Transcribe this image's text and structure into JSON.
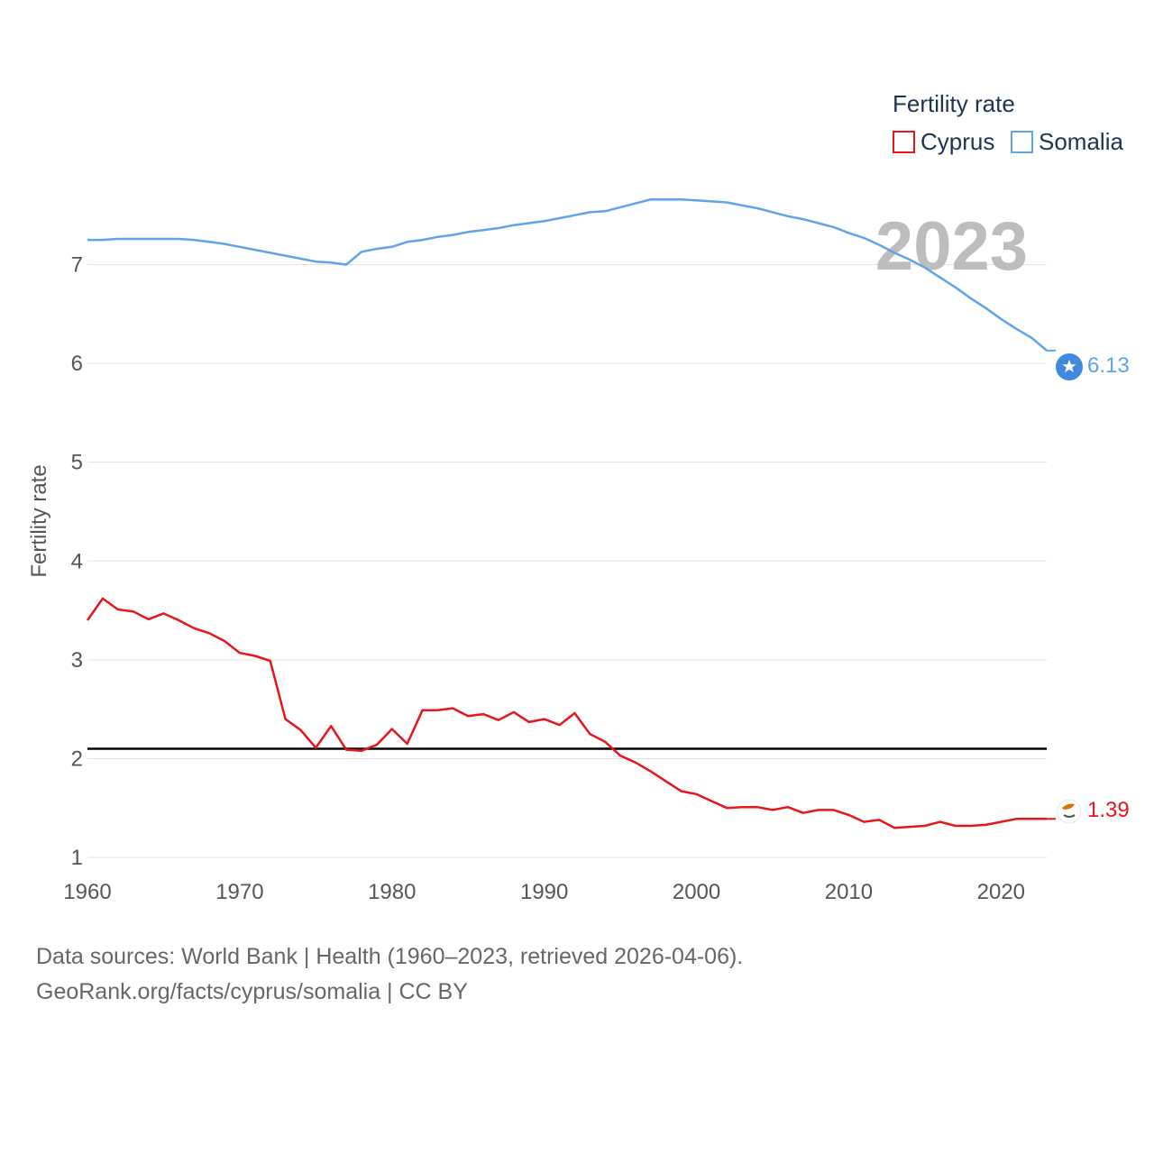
{
  "chart_data": {
    "type": "line",
    "title": "Fertility rate",
    "ylabel": "Fertility rate",
    "xlabel": "",
    "xlim": [
      1960,
      2023
    ],
    "ylim": [
      0.9,
      8.2
    ],
    "x_ticks": [
      1960,
      1970,
      1980,
      1990,
      2000,
      2010,
      2020
    ],
    "y_ticks": [
      1,
      2,
      3,
      4,
      5,
      6,
      7
    ],
    "reference_line": 2.1,
    "year_watermark": "2023",
    "legend_placement": "top-right",
    "x": [
      1960,
      1961,
      1962,
      1963,
      1964,
      1965,
      1966,
      1967,
      1968,
      1969,
      1970,
      1971,
      1972,
      1973,
      1974,
      1975,
      1976,
      1977,
      1978,
      1979,
      1980,
      1981,
      1982,
      1983,
      1984,
      1985,
      1986,
      1987,
      1988,
      1989,
      1990,
      1991,
      1992,
      1993,
      1994,
      1995,
      1996,
      1997,
      1998,
      1999,
      2000,
      2001,
      2002,
      2003,
      2004,
      2005,
      2006,
      2007,
      2008,
      2009,
      2010,
      2011,
      2012,
      2013,
      2014,
      2015,
      2016,
      2017,
      2018,
      2019,
      2020,
      2021,
      2022,
      2023
    ],
    "series": [
      {
        "name": "Cyprus",
        "color": "#e8151b",
        "icon": "cyprus-flag-icon",
        "end_label": "1.39",
        "values": [
          3.4,
          3.62,
          3.51,
          3.49,
          3.41,
          3.47,
          3.4,
          3.32,
          3.27,
          3.19,
          3.07,
          3.04,
          2.99,
          2.4,
          2.29,
          2.11,
          2.33,
          2.09,
          2.08,
          2.14,
          2.3,
          2.15,
          2.49,
          2.49,
          2.51,
          2.43,
          2.45,
          2.39,
          2.47,
          2.37,
          2.4,
          2.34,
          2.46,
          2.25,
          2.17,
          2.03,
          1.96,
          1.87,
          1.77,
          1.67,
          1.64,
          1.57,
          1.5,
          1.51,
          1.51,
          1.48,
          1.51,
          1.45,
          1.48,
          1.48,
          1.43,
          1.36,
          1.38,
          1.3,
          1.31,
          1.32,
          1.36,
          1.32,
          1.32,
          1.33,
          1.36,
          1.39,
          1.39,
          1.39
        ]
      },
      {
        "name": "Somalia",
        "color": "#5fa4e8",
        "icon": "somalia-flag-icon",
        "end_label": "6.13",
        "values": [
          7.25,
          7.25,
          7.26,
          7.26,
          7.26,
          7.26,
          7.26,
          7.25,
          7.23,
          7.21,
          7.18,
          7.15,
          7.12,
          7.09,
          7.06,
          7.03,
          7.02,
          7.0,
          7.13,
          7.16,
          7.18,
          7.23,
          7.25,
          7.28,
          7.3,
          7.33,
          7.35,
          7.37,
          7.4,
          7.42,
          7.44,
          7.47,
          7.5,
          7.53,
          7.54,
          7.58,
          7.62,
          7.66,
          7.66,
          7.66,
          7.65,
          7.64,
          7.63,
          7.6,
          7.57,
          7.53,
          7.49,
          7.46,
          7.42,
          7.38,
          7.32,
          7.27,
          7.2,
          7.12,
          7.05,
          6.97,
          6.87,
          6.77,
          6.66,
          6.56,
          6.45,
          6.35,
          6.26,
          6.13
        ]
      }
    ]
  },
  "footer": {
    "sources": "Data sources: World Bank | Health (1960–2023, retrieved 2026-04-06).",
    "attribution": "GeoRank.org/facts/cyprus/somalia | CC BY"
  }
}
